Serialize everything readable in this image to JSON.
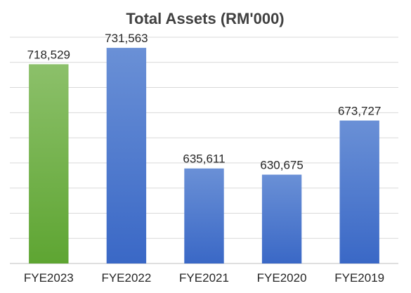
{
  "chart_data": {
    "type": "bar",
    "title": "Total Assets (RM'000)",
    "categories": [
      "FYE2023",
      "FYE2022",
      "FYE2021",
      "FYE2020",
      "FYE2019"
    ],
    "values": [
      718529,
      731563,
      635611,
      630675,
      673727
    ],
    "data_labels": [
      "718,529",
      "731,563",
      "635,611",
      "630,675",
      "673,727"
    ],
    "ylim": [
      560000,
      740000
    ],
    "grid": true,
    "legend": "none",
    "colors": {
      "highlight_top": "#8cc06a",
      "highlight_bottom": "#5ea532",
      "bar_top": "#6a90d6",
      "bar_bottom": "#3a68c6",
      "grid": "#d9d9d9",
      "axis": "#bfbfbf"
    }
  }
}
